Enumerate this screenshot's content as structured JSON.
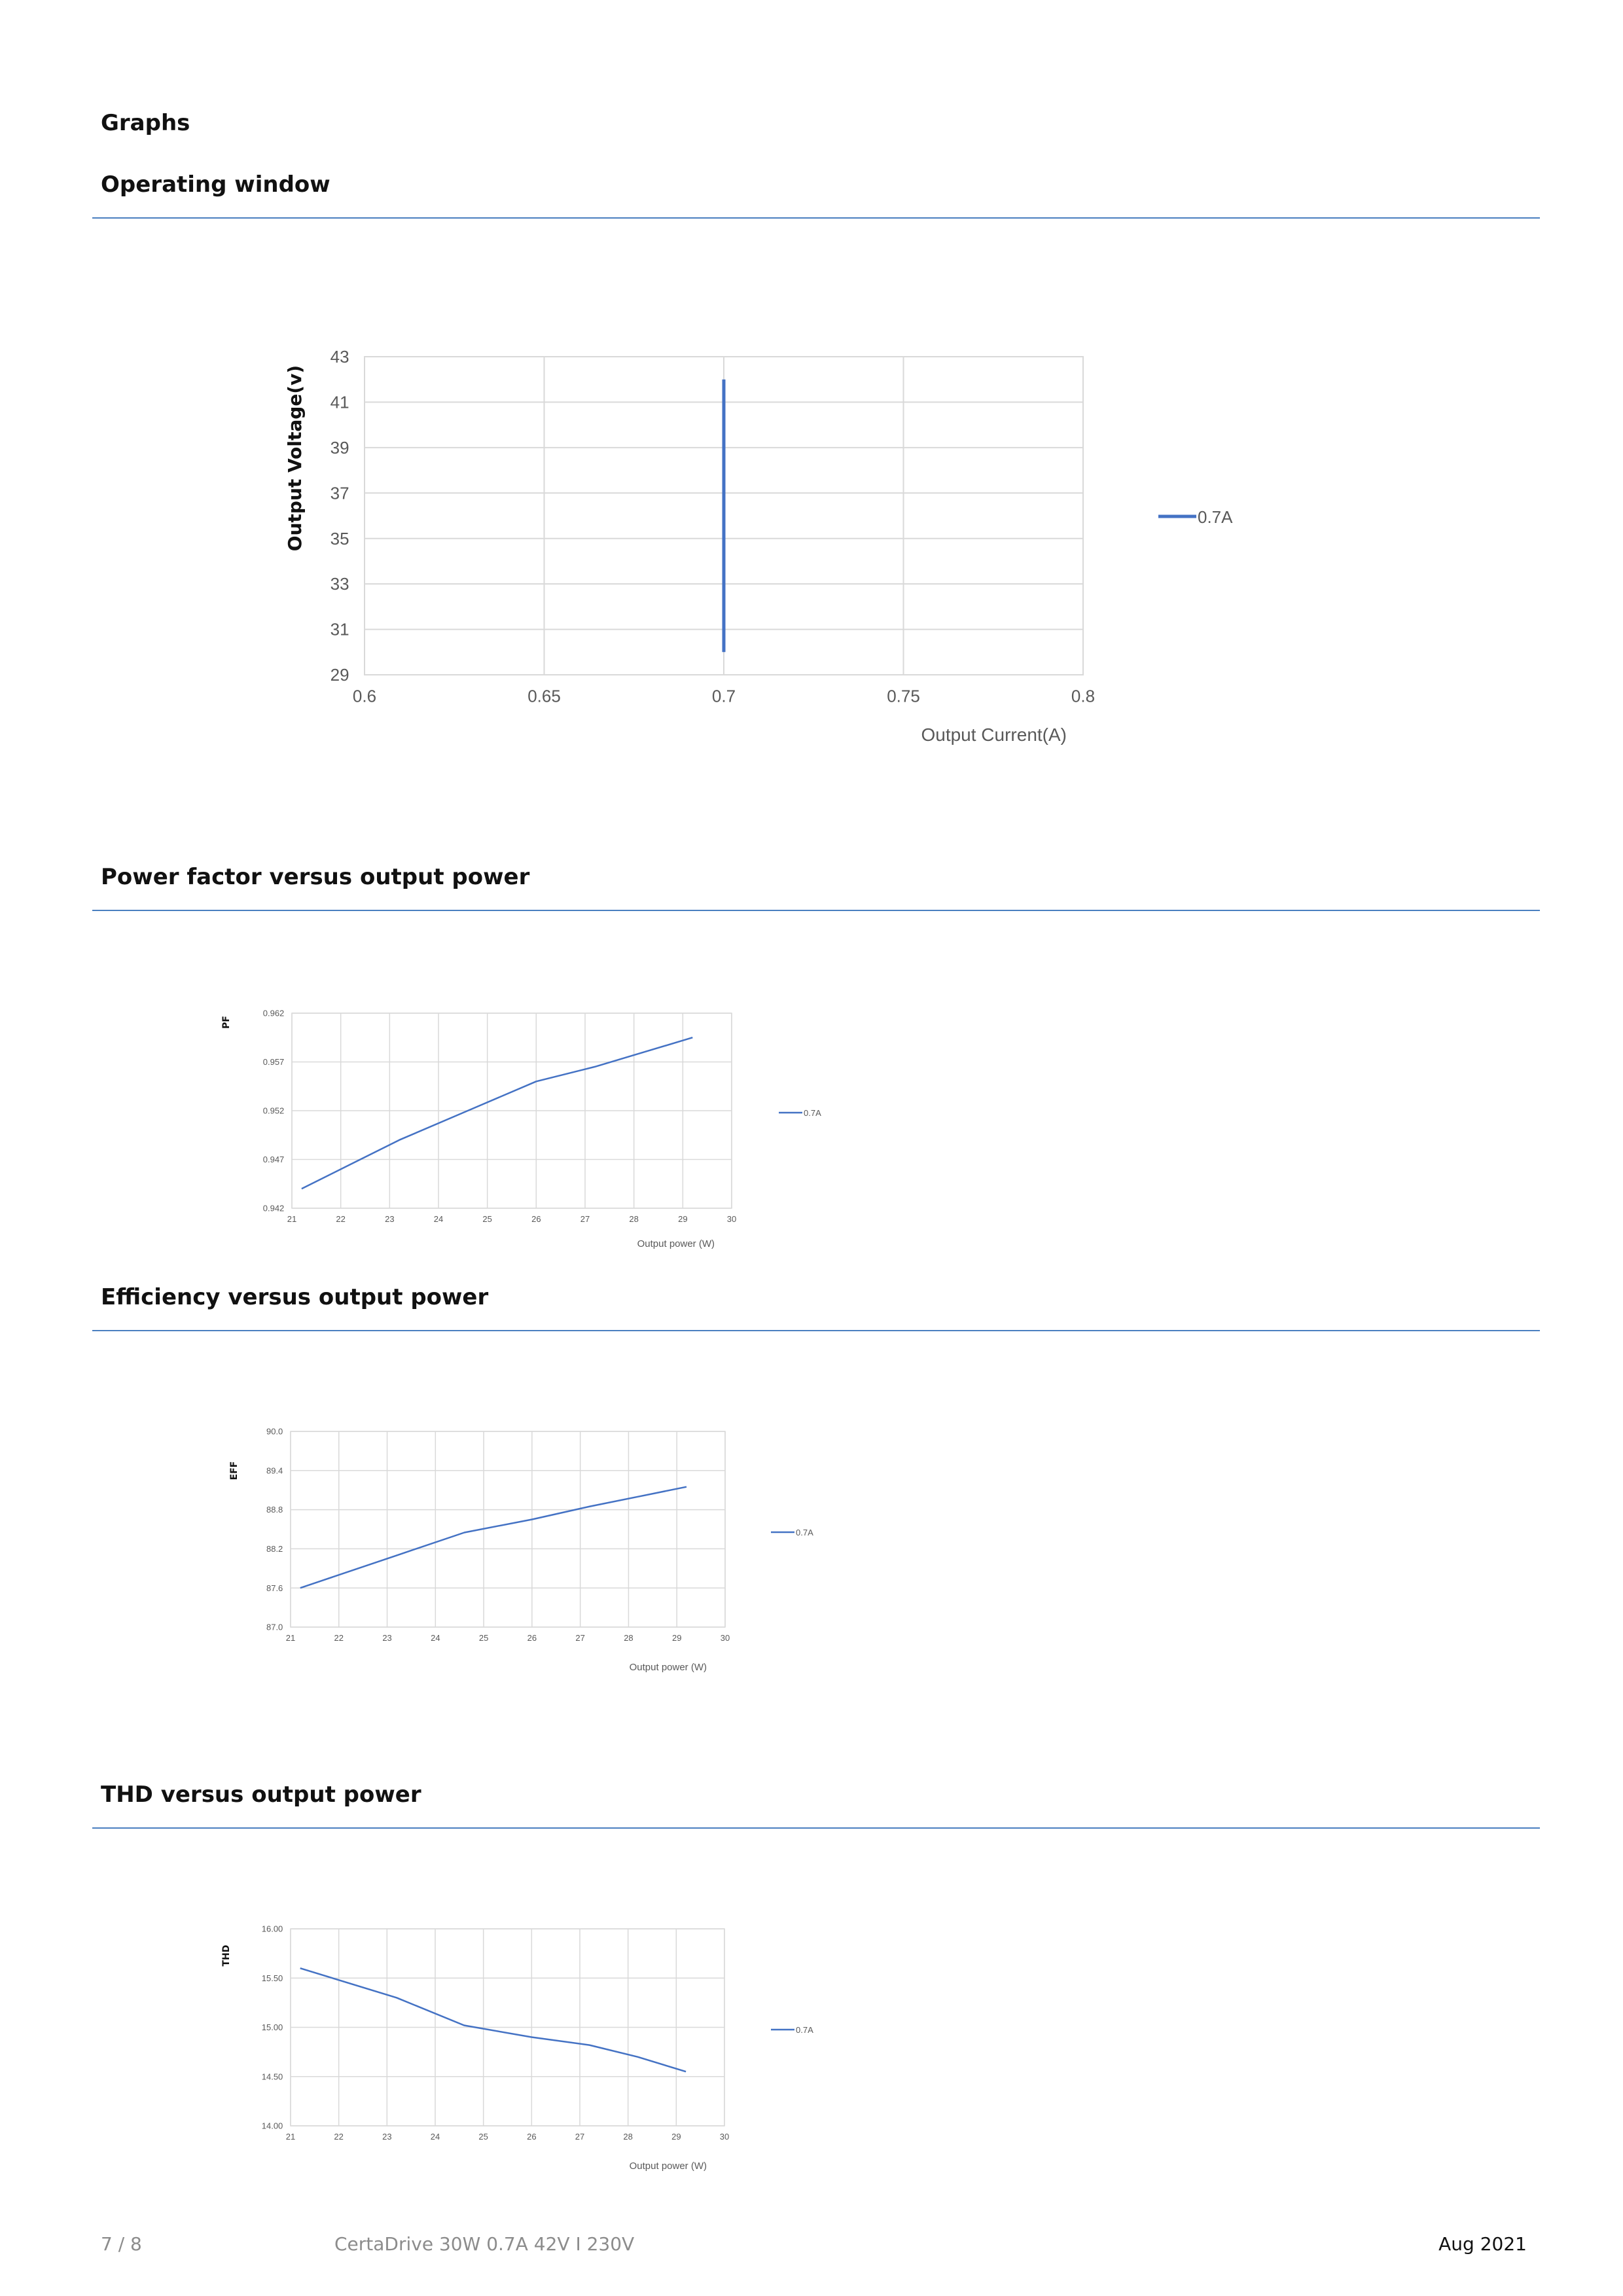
{
  "page": {
    "section_title": "Graphs",
    "headings": {
      "operating_window": "Operating window",
      "power_factor": "Power factor versus output power",
      "efficiency": "Efficiency versus output power",
      "thd": "THD versus output power"
    }
  },
  "footer": {
    "page_number": "7 / 8",
    "product": "CertaDrive 30W 0.7A 42V I 230V",
    "date": "Aug 2021"
  },
  "colors": {
    "series": "#4472c4",
    "rule": "#4a7fc0",
    "grid": "#d9d9d9"
  },
  "chart_data": [
    {
      "type": "line",
      "xlabel": "Output Current(A)",
      "ylabel": "Output Voltage(v)",
      "xlim": [
        0.6,
        0.8
      ],
      "ylim": [
        29,
        43
      ],
      "x_ticks": [
        0.6,
        0.65,
        0.7,
        0.75,
        0.8
      ],
      "x_tick_labels": [
        "0.6",
        "0.65",
        "0.7",
        "0.75",
        "0.8"
      ],
      "y_ticks": [
        29,
        31,
        33,
        35,
        37,
        39,
        41,
        43
      ],
      "y_tick_labels": [
        "29",
        "31",
        "33",
        "35",
        "37",
        "39",
        "41",
        "43"
      ],
      "grid": true,
      "legend": "right",
      "series": [
        {
          "name": "0.7A",
          "x": [
            0.7,
            0.7
          ],
          "y": [
            30,
            42
          ]
        }
      ]
    },
    {
      "type": "line",
      "xlabel": "Output power (W)",
      "ylabel": "PF",
      "xlim": [
        21,
        30
      ],
      "ylim": [
        0.942,
        0.962
      ],
      "x_ticks": [
        21,
        22,
        23,
        24,
        25,
        26,
        27,
        28,
        29,
        30
      ],
      "x_tick_labels": [
        "21",
        "22",
        "23",
        "24",
        "25",
        "26",
        "27",
        "28",
        "29",
        "30"
      ],
      "y_ticks": [
        0.942,
        0.947,
        0.952,
        0.957,
        0.962
      ],
      "y_tick_labels": [
        "0.942",
        "0.947",
        "0.952",
        "0.957",
        "0.962"
      ],
      "grid": true,
      "legend": "right",
      "series": [
        {
          "name": "0.7A",
          "x": [
            21.2,
            23.2,
            24.6,
            26.0,
            27.2,
            28.2,
            29.2
          ],
          "y": [
            0.944,
            0.949,
            0.952,
            0.955,
            0.9565,
            0.958,
            0.9595
          ]
        }
      ]
    },
    {
      "type": "line",
      "xlabel": "Output power (W)",
      "ylabel": "EFF",
      "xlim": [
        21,
        30
      ],
      "ylim": [
        87.0,
        90.0
      ],
      "x_ticks": [
        21,
        22,
        23,
        24,
        25,
        26,
        27,
        28,
        29,
        30
      ],
      "x_tick_labels": [
        "21",
        "22",
        "23",
        "24",
        "25",
        "26",
        "27",
        "28",
        "29",
        "30"
      ],
      "y_ticks": [
        87.0,
        87.6,
        88.2,
        88.8,
        89.4,
        90.0
      ],
      "y_tick_labels": [
        "87.0",
        "87.6",
        "88.2",
        "88.8",
        "89.4",
        "90.0"
      ],
      "grid": true,
      "legend": "right",
      "series": [
        {
          "name": "0.7A",
          "x": [
            21.2,
            23.2,
            24.6,
            26.0,
            27.2,
            28.2,
            29.2
          ],
          "y": [
            87.6,
            88.1,
            88.45,
            88.65,
            88.85,
            89.0,
            89.15
          ]
        }
      ]
    },
    {
      "type": "line",
      "xlabel": "Output power (W)",
      "ylabel": "THD",
      "xlim": [
        21,
        30
      ],
      "ylim": [
        14.0,
        16.0
      ],
      "x_ticks": [
        21,
        22,
        23,
        24,
        25,
        26,
        27,
        28,
        29,
        30
      ],
      "x_tick_labels": [
        "21",
        "22",
        "23",
        "24",
        "25",
        "26",
        "27",
        "28",
        "29",
        "30"
      ],
      "y_ticks": [
        14.0,
        14.5,
        15.0,
        15.5,
        16.0
      ],
      "y_tick_labels": [
        "14.00",
        "14.50",
        "15.00",
        "15.50",
        "16.00"
      ],
      "grid": true,
      "legend": "right",
      "series": [
        {
          "name": "0.7A",
          "x": [
            21.2,
            23.2,
            24.6,
            26.0,
            27.2,
            28.2,
            29.2
          ],
          "y": [
            15.6,
            15.3,
            15.02,
            14.9,
            14.82,
            14.7,
            14.55
          ]
        }
      ]
    }
  ]
}
